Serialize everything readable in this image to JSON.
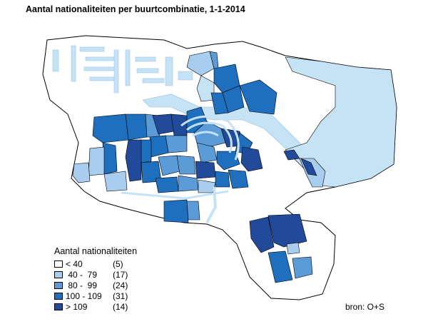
{
  "title": "Aantal nationaliteiten per buurtcombinatie, 1-1-2014",
  "colors": {
    "water": "#c6e3f5",
    "class_1": "#ffffff",
    "class_2": "#a9cdee",
    "class_3": "#5a9bd8",
    "class_4": "#1f6fbf",
    "class_5": "#214b9a"
  },
  "legend": {
    "title": "Aantal nationaliteiten",
    "items": [
      {
        "label": "< 40",
        "count": "(5)",
        "color": "#ffffff"
      },
      {
        "label": " 40 -  79",
        "count": "(17)",
        "color": "#a9cdee"
      },
      {
        "label": " 80 -  99",
        "count": "(24)",
        "color": "#5a9bd8"
      },
      {
        "label": "100 - 109",
        "count": "(31)",
        "color": "#1f6fbf"
      },
      {
        "label": "> 109",
        "count": "(14)",
        "color": "#214b9a"
      }
    ]
  },
  "source": "bron: O+S"
}
